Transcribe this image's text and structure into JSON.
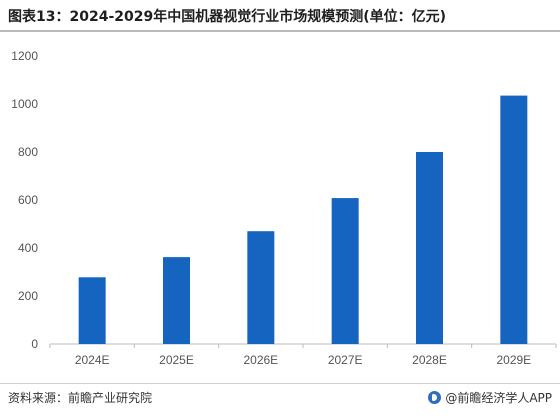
{
  "title": "图表13：2024-2029年中国机器视觉行业市场规模预测(单位：亿元)",
  "footer": {
    "source": "资料来源：前瞻产业研究院",
    "brand": "@前瞻经济学人APP"
  },
  "colors": {
    "bar": "#1565c0",
    "axis": "#bdbdbd",
    "text": "#555555"
  },
  "chart_data": {
    "type": "bar",
    "title": "图表13：2024-2029年中国机器视觉行业市场规模预测(单位：亿元)",
    "categories": [
      "2024E",
      "2025E",
      "2026E",
      "2027E",
      "2028E",
      "2029E"
    ],
    "values": [
      278,
      362,
      470,
      608,
      800,
      1035
    ],
    "xlabel": "",
    "ylabel": "",
    "ylim": [
      0,
      1200
    ],
    "yticks": [
      0,
      200,
      400,
      600,
      800,
      1000,
      1200
    ],
    "grid": false,
    "legend": "none"
  }
}
